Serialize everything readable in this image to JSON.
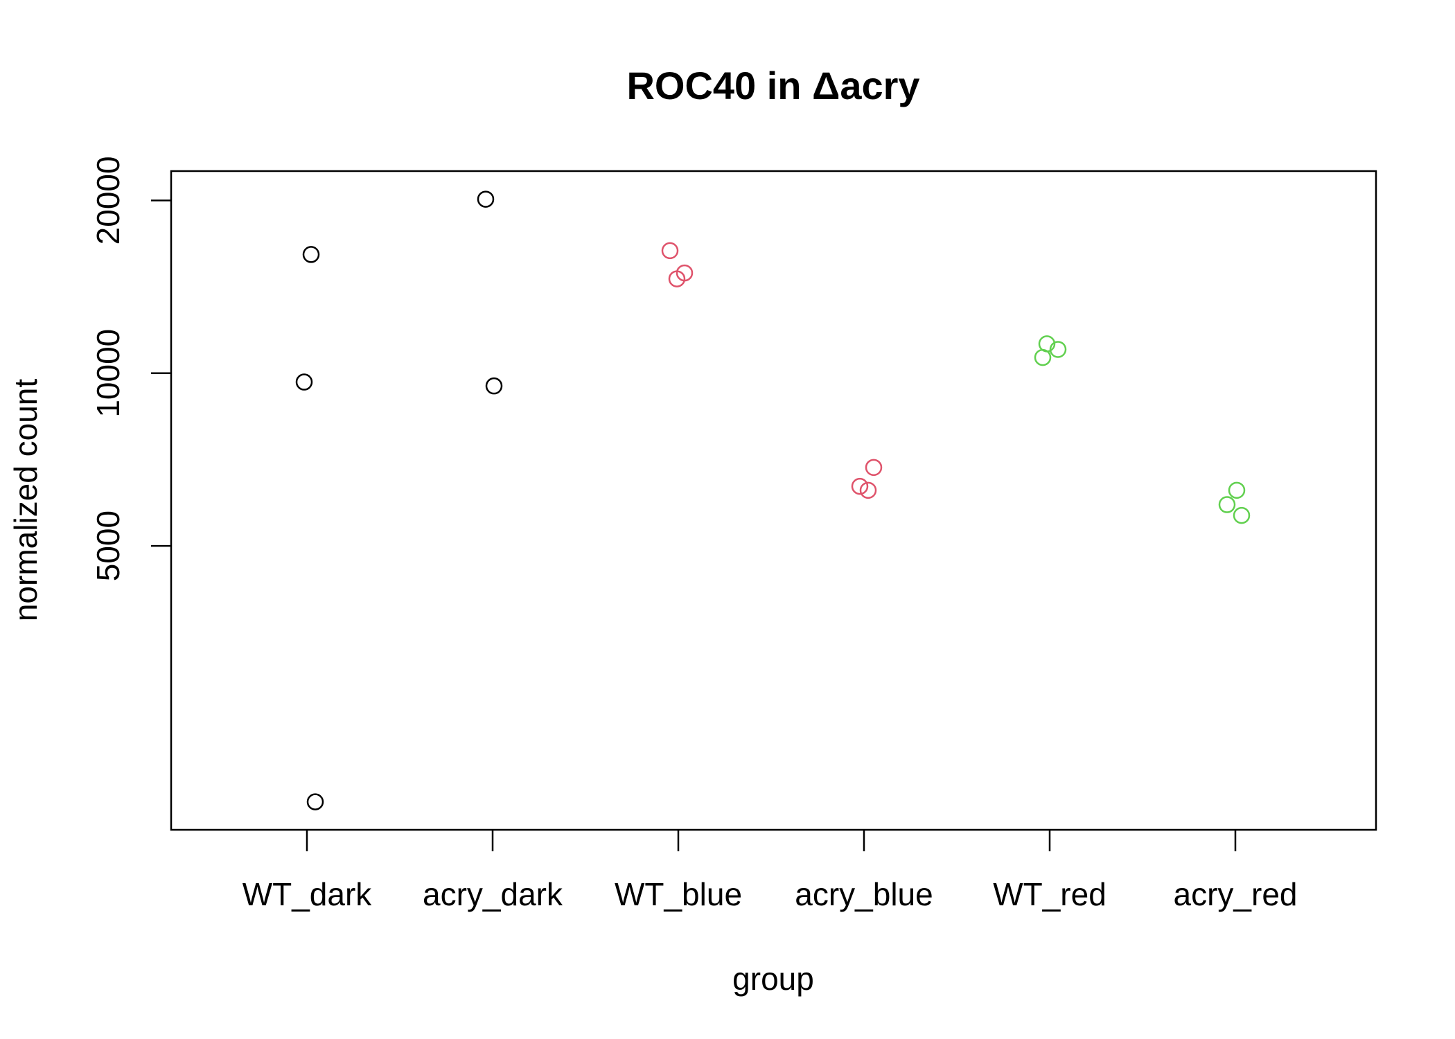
{
  "chart_data": {
    "type": "scatter",
    "title": "ROC40 in Δacry",
    "xlabel": "group",
    "ylabel": "normalized count",
    "y_scale": "log",
    "ylim": [
      1600,
      22500
    ],
    "y_ticks": [
      5000,
      10000,
      20000
    ],
    "y_tick_labels": [
      "5000",
      "10000",
      "20000"
    ],
    "grid": false,
    "categories": [
      "WT_dark",
      "acry_dark",
      "WT_blue",
      "acry_blue",
      "WT_red",
      "acry_red"
    ],
    "series": [
      {
        "color": "#000000",
        "points": [
          {
            "x": "WT_dark",
            "y": 16100
          },
          {
            "x": "WT_dark",
            "y": 9650
          },
          {
            "x": "WT_dark",
            "y": 1790
          },
          {
            "x": "acry_dark",
            "y": 20100
          },
          {
            "x": "acry_dark",
            "y": 9500
          }
        ]
      },
      {
        "color": "#DF536B",
        "points": [
          {
            "x": "WT_blue",
            "y": 16350
          },
          {
            "x": "WT_blue",
            "y": 14950
          },
          {
            "x": "WT_blue",
            "y": 14600
          },
          {
            "x": "acry_blue",
            "y": 6850
          },
          {
            "x": "acry_blue",
            "y": 6350
          },
          {
            "x": "acry_blue",
            "y": 6250
          }
        ]
      },
      {
        "color": "#61D04F",
        "points": [
          {
            "x": "WT_red",
            "y": 11250
          },
          {
            "x": "WT_red",
            "y": 11000
          },
          {
            "x": "WT_red",
            "y": 10650
          },
          {
            "x": "acry_red",
            "y": 6250
          },
          {
            "x": "acry_red",
            "y": 5900
          },
          {
            "x": "acry_red",
            "y": 5650
          }
        ]
      }
    ]
  }
}
